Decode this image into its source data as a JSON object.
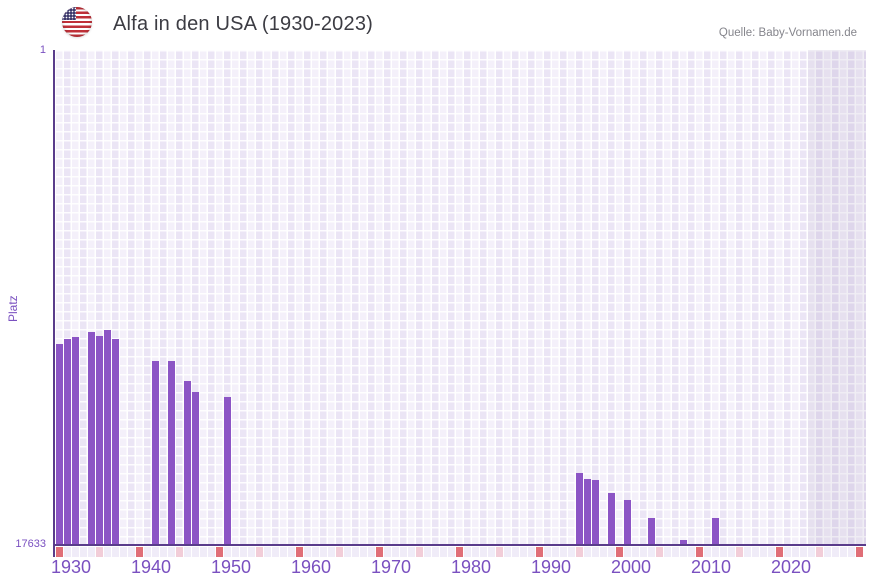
{
  "header": {
    "title": "Alfa in den USA (1930-2023)",
    "flag_icon": "us-flag-icon",
    "source": "Quelle: Baby-Vornamen.de"
  },
  "axes": {
    "y_label": "Platz",
    "y_top_tick": "1",
    "y_bottom_tick": "17633",
    "decade_labels": [
      "1930",
      "1940",
      "1950",
      "1960",
      "1970",
      "1980",
      "1990",
      "2000",
      "2010",
      "2020"
    ]
  },
  "colors": {
    "bar": "#8c55c5",
    "axis": "#5a3c8b",
    "label_purple": "#7a50c0",
    "title_text": "#3c3c43",
    "source_text": "#85858c",
    "grid_cell_light": "#f4f0fa",
    "grid_cell_dark": "#ebe5f5",
    "tick_default": "#f0ecf8",
    "tick_decade_red": "#e06e77",
    "tick_half_decade_pink": "#f2cdd8",
    "future_overlay": "rgba(108,92,150,0.10)"
  },
  "chart_data": {
    "type": "bar",
    "title": "Alfa in den USA (1930-2023)",
    "xlabel": "",
    "ylabel": "Platz",
    "ylim": [
      1,
      17633
    ],
    "y_axis_inverted": true,
    "x_axis_year_range": [
      1930,
      2030
    ],
    "data_year_range": [
      1930,
      2023
    ],
    "future_shaded_years": [
      2024,
      2030
    ],
    "grid": true,
    "legend": false,
    "points": [
      {
        "year": 1930,
        "rank": 10500
      },
      {
        "year": 1931,
        "rank": 10300
      },
      {
        "year": 1932,
        "rank": 10250
      },
      {
        "year": 1934,
        "rank": 10050
      },
      {
        "year": 1935,
        "rank": 10200
      },
      {
        "year": 1936,
        "rank": 10000
      },
      {
        "year": 1937,
        "rank": 10300
      },
      {
        "year": 1942,
        "rank": 11100
      },
      {
        "year": 1944,
        "rank": 11100
      },
      {
        "year": 1946,
        "rank": 11800
      },
      {
        "year": 1947,
        "rank": 12200
      },
      {
        "year": 1951,
        "rank": 12400
      },
      {
        "year": 1995,
        "rank": 15100
      },
      {
        "year": 1996,
        "rank": 15300
      },
      {
        "year": 1997,
        "rank": 15350
      },
      {
        "year": 1999,
        "rank": 15800
      },
      {
        "year": 2001,
        "rank": 16050
      },
      {
        "year": 2004,
        "rank": 16700
      },
      {
        "year": 2008,
        "rank": 17500
      },
      {
        "year": 2012,
        "rank": 16700
      }
    ]
  }
}
